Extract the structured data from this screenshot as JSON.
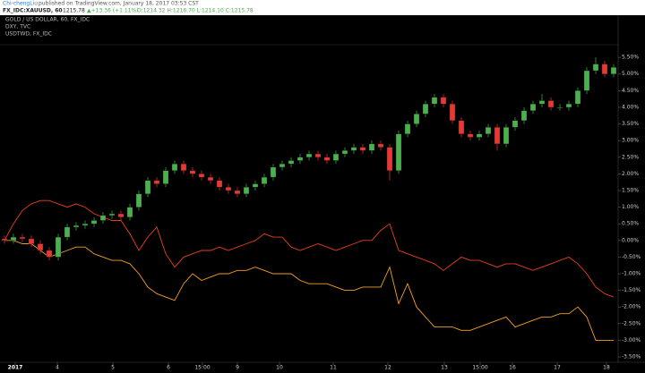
{
  "header": {
    "author": "Chi-chengLiu",
    "published": "published on TradingView.com, January 18, 2017 03:53 CST",
    "symbol": "FX_IDC:XAUUSD, 60",
    "last": "1215.78",
    "change": "▲+13.36 (+1.11%)",
    "ohlc": "O:1214.32 H:1216.70 L:1214.10 C:1215.78"
  },
  "chart_data": {
    "type": "candlestick",
    "candles": {
      "name": "GOLD / US DOLLAR, 60, FX_IDC",
      "up_color": "#4caf50",
      "down_color": "#e53935",
      "open": [
        0.05,
        0.0,
        0.1,
        0.05,
        -0.1,
        -0.3,
        -0.5,
        0.1,
        0.4,
        0.45,
        0.5,
        0.6,
        0.75,
        0.8,
        0.7,
        1.0,
        1.4,
        1.8,
        1.7,
        2.1,
        2.3,
        2.1,
        2.0,
        1.9,
        1.8,
        1.6,
        1.5,
        1.4,
        1.6,
        1.7,
        1.9,
        2.2,
        2.3,
        2.4,
        2.5,
        2.6,
        2.5,
        2.4,
        2.6,
        2.7,
        2.8,
        2.7,
        2.9,
        2.8,
        2.1,
        3.2,
        3.5,
        3.8,
        4.1,
        4.3,
        4.1,
        3.6,
        3.2,
        3.1,
        3.2,
        3.4,
        2.9,
        3.4,
        3.6,
        3.9,
        4.1,
        4.2,
        4.0,
        4.0,
        4.1,
        4.5,
        5.1,
        5.3,
        5.0
      ],
      "high": [
        0.15,
        0.2,
        0.2,
        0.15,
        0.0,
        -0.2,
        0.2,
        0.5,
        0.55,
        0.6,
        0.7,
        0.85,
        0.9,
        0.9,
        1.1,
        1.5,
        1.9,
        1.9,
        2.2,
        2.4,
        2.4,
        2.2,
        2.1,
        2.0,
        1.9,
        1.7,
        1.6,
        1.7,
        1.8,
        2.0,
        2.3,
        2.4,
        2.5,
        2.6,
        2.7,
        2.7,
        2.6,
        2.7,
        2.8,
        2.9,
        2.9,
        3.0,
        3.0,
        2.9,
        3.3,
        3.6,
        3.9,
        4.2,
        4.4,
        4.4,
        4.2,
        3.7,
        3.3,
        3.3,
        3.5,
        3.5,
        3.5,
        3.7,
        4.0,
        4.2,
        4.4,
        4.3,
        4.1,
        4.2,
        4.6,
        5.2,
        5.5,
        5.4,
        5.3
      ],
      "low": [
        -0.1,
        -0.1,
        -0.05,
        -0.2,
        -0.4,
        -0.6,
        -0.6,
        0.0,
        0.3,
        0.35,
        0.4,
        0.5,
        0.65,
        0.6,
        0.6,
        0.9,
        1.3,
        1.6,
        1.6,
        2.0,
        2.0,
        1.9,
        1.8,
        1.7,
        1.5,
        1.4,
        1.3,
        1.3,
        1.5,
        1.6,
        1.8,
        2.1,
        2.2,
        2.3,
        2.4,
        2.4,
        2.3,
        2.3,
        2.5,
        2.6,
        2.6,
        2.6,
        2.7,
        1.8,
        2.0,
        3.1,
        3.4,
        3.7,
        4.0,
        4.0,
        3.5,
        3.1,
        3.0,
        3.0,
        3.1,
        2.7,
        2.8,
        3.3,
        3.5,
        3.8,
        4.0,
        3.9,
        3.9,
        3.9,
        4.0,
        4.4,
        5.0,
        4.9,
        4.9
      ],
      "close": [
        0.0,
        0.1,
        0.05,
        -0.1,
        -0.3,
        -0.5,
        0.1,
        0.4,
        0.45,
        0.5,
        0.6,
        0.75,
        0.8,
        0.7,
        1.0,
        1.4,
        1.8,
        1.7,
        2.1,
        2.3,
        2.1,
        2.0,
        1.9,
        1.8,
        1.6,
        1.5,
        1.4,
        1.6,
        1.7,
        1.9,
        2.2,
        2.3,
        2.4,
        2.5,
        2.6,
        2.5,
        2.4,
        2.6,
        2.7,
        2.8,
        2.7,
        2.9,
        2.8,
        2.1,
        3.2,
        3.5,
        3.8,
        4.1,
        4.3,
        4.1,
        3.6,
        3.2,
        3.1,
        3.2,
        3.4,
        2.9,
        3.4,
        3.6,
        3.9,
        4.1,
        4.2,
        4.0,
        4.0,
        4.1,
        4.5,
        5.1,
        5.3,
        5.0,
        5.2
      ]
    },
    "series": [
      {
        "name": "DXY, TVC",
        "color": "#e8401c",
        "values": [
          0.0,
          0.5,
          0.9,
          1.1,
          1.2,
          1.2,
          1.1,
          1.0,
          1.1,
          1.0,
          0.8,
          0.7,
          0.6,
          0.6,
          0.2,
          -0.3,
          0.1,
          0.4,
          -0.4,
          -0.8,
          -0.5,
          -0.4,
          -0.3,
          -0.3,
          -0.2,
          -0.3,
          -0.2,
          -0.1,
          0.0,
          0.2,
          0.1,
          0.1,
          -0.2,
          -0.3,
          -0.2,
          -0.1,
          -0.2,
          -0.3,
          -0.2,
          -0.1,
          0.0,
          0.0,
          0.3,
          0.5,
          -0.3,
          -0.4,
          -0.5,
          -0.6,
          -0.7,
          -0.9,
          -0.7,
          -0.5,
          -0.6,
          -0.6,
          -0.7,
          -0.8,
          -0.7,
          -0.7,
          -0.8,
          -0.9,
          -0.8,
          -0.7,
          -0.6,
          -0.5,
          -0.7,
          -1.0,
          -1.4,
          -1.6,
          -1.7
        ]
      },
      {
        "name": "USDTWD, FX_IDC",
        "color": "#f5a020",
        "values": [
          0.0,
          0.0,
          -0.1,
          -0.1,
          -0.3,
          -0.5,
          -0.4,
          -0.3,
          -0.2,
          -0.2,
          -0.4,
          -0.5,
          -0.6,
          -0.6,
          -0.7,
          -1.0,
          -1.4,
          -1.6,
          -1.7,
          -1.8,
          -1.3,
          -1.0,
          -1.2,
          -1.1,
          -1.0,
          -1.0,
          -0.9,
          -0.9,
          -0.8,
          -0.9,
          -1.0,
          -1.0,
          -1.0,
          -1.2,
          -1.3,
          -1.3,
          -1.3,
          -1.4,
          -1.5,
          -1.5,
          -1.4,
          -1.4,
          -1.4,
          -0.8,
          -1.9,
          -1.3,
          -2.0,
          -2.3,
          -2.6,
          -2.6,
          -2.6,
          -2.7,
          -2.7,
          -2.6,
          -2.5,
          -2.4,
          -2.3,
          -2.6,
          -2.5,
          -2.4,
          -2.3,
          -2.3,
          -2.2,
          -2.2,
          -2.0,
          -2.3,
          -3.0,
          -3.0,
          -3.0
        ]
      }
    ],
    "xlim": [
      -0.5,
      68.5
    ],
    "xticks": [
      {
        "value": 1.2,
        "label": "2017"
      },
      {
        "value": 5.9,
        "label": "4"
      },
      {
        "value": 12.1,
        "label": "5"
      },
      {
        "value": 18.3,
        "label": "6"
      },
      {
        "value": 22.1,
        "label": "15:00"
      },
      {
        "value": 26,
        "label": "9"
      },
      {
        "value": 30.7,
        "label": "10"
      },
      {
        "value": 36.7,
        "label": "11"
      },
      {
        "value": 42.8,
        "label": "12"
      },
      {
        "value": 49.1,
        "label": "13"
      },
      {
        "value": 53.1,
        "label": "15:00"
      },
      {
        "value": 56.7,
        "label": "16"
      },
      {
        "value": 61.7,
        "label": "17"
      },
      {
        "value": 67.2,
        "label": "18"
      }
    ],
    "ylim": [
      -3.66,
      5.88
    ],
    "yticks": [
      {
        "value": 5.5,
        "label": "5.50%"
      },
      {
        "value": 5,
        "label": "5.00%"
      },
      {
        "value": 4.5,
        "label": "4.50%"
      },
      {
        "value": 4,
        "label": "4.00%"
      },
      {
        "value": 3.5,
        "label": "3.50%"
      },
      {
        "value": 3,
        "label": "3.00%"
      },
      {
        "value": 2.5,
        "label": "2.50%"
      },
      {
        "value": 2,
        "label": "2.00%"
      },
      {
        "value": 1.5,
        "label": "1.50%"
      },
      {
        "value": 1,
        "label": "1.00%"
      },
      {
        "value": 0.5,
        "label": "0.50%"
      },
      {
        "value": 0,
        "label": "0.00%"
      },
      {
        "value": -0.5,
        "label": "-0.50%"
      },
      {
        "value": -1,
        "label": "-1.00%"
      },
      {
        "value": -1.5,
        "label": "-1.50%"
      },
      {
        "value": -2,
        "label": "-2.00%"
      },
      {
        "value": -2.5,
        "label": "-2.50%"
      },
      {
        "value": -3,
        "label": "-3.00%"
      },
      {
        "value": -3.5,
        "label": "-3.50%"
      }
    ]
  }
}
